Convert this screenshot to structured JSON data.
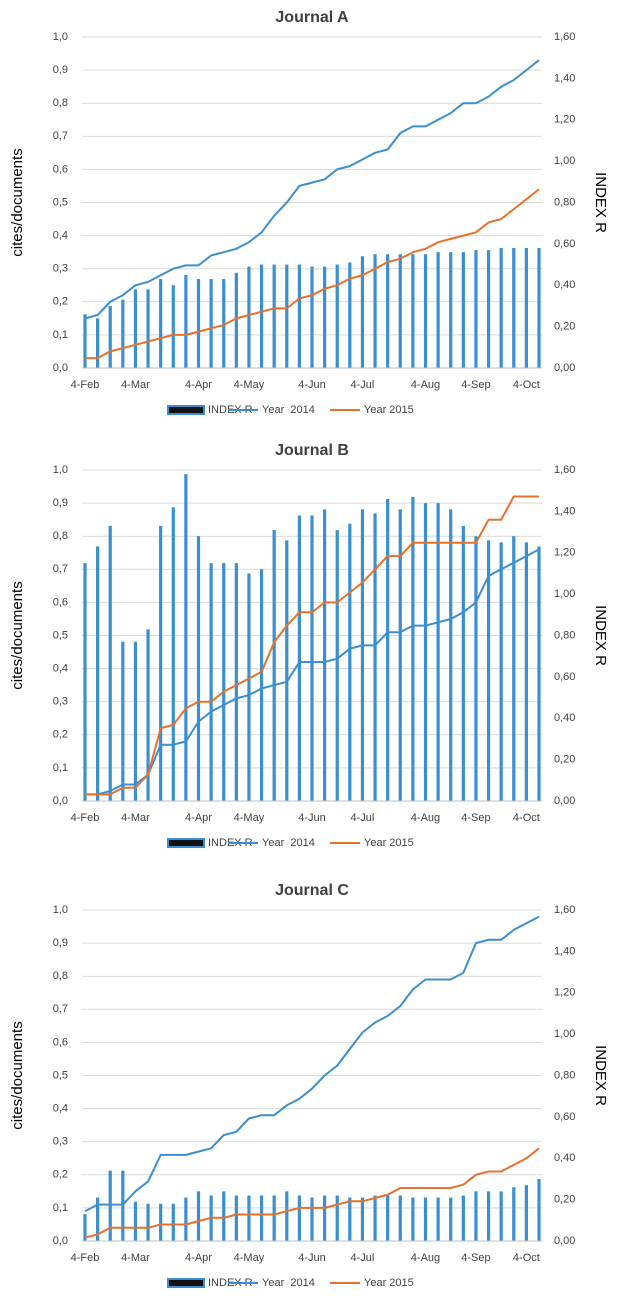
{
  "chart_data": [
    {
      "type": "bar",
      "title": "Journal A",
      "y_label": "cites/documents",
      "y2_label": "INDEX R",
      "categories": [
        "4-Feb",
        null,
        null,
        null,
        "4-Mar",
        null,
        null,
        null,
        null,
        "4-Apr",
        null,
        null,
        null,
        "4-May",
        null,
        null,
        null,
        null,
        "4-Jun",
        null,
        null,
        null,
        "4-Jul",
        null,
        null,
        null,
        null,
        "4-Aug",
        null,
        null,
        null,
        "4-Sep",
        null,
        null,
        null,
        "4-Oct",
        null
      ],
      "ylim": [
        0,
        1
      ],
      "yticks": [
        {
          "value": 0,
          "label": "0,0"
        },
        {
          "value": 0.1,
          "label": "0,1"
        },
        {
          "value": 0.2,
          "label": "0,2"
        },
        {
          "value": 0.3,
          "label": "0,3"
        },
        {
          "value": 0.4,
          "label": "0,4"
        },
        {
          "value": 0.5,
          "label": "0,5"
        },
        {
          "value": 0.6,
          "label": "0,6"
        },
        {
          "value": 0.7,
          "label": "0,7"
        },
        {
          "value": 0.8,
          "label": "0,8"
        },
        {
          "value": 0.9,
          "label": "0,9"
        },
        {
          "value": 1,
          "label": "1,0"
        }
      ],
      "y2lim": [
        0,
        1.6
      ],
      "y2ticks": [
        {
          "value": 0,
          "label": "0,00"
        },
        {
          "value": 0.2,
          "label": "0,20"
        },
        {
          "value": 0.4,
          "label": "0,40"
        },
        {
          "value": 0.6,
          "label": "0,60"
        },
        {
          "value": 0.8,
          "label": "0,80"
        },
        {
          "value": 1,
          "label": "1,00"
        },
        {
          "value": 1.2,
          "label": "1,20"
        },
        {
          "value": 1.4,
          "label": "1,40"
        },
        {
          "value": 1.6,
          "label": "1,60"
        }
      ],
      "grid": true,
      "series": [
        {
          "name": "INDEX R",
          "type": "bar",
          "axis": "y2",
          "color": "#3a8fd0",
          "values": [
            0.26,
            0.24,
            0.3,
            0.33,
            0.38,
            0.38,
            0.43,
            0.4,
            0.45,
            0.43,
            0.43,
            0.43,
            0.46,
            0.49,
            0.5,
            0.5,
            0.5,
            0.5,
            0.49,
            0.49,
            0.5,
            0.51,
            0.54,
            0.55,
            0.55,
            0.55,
            0.55,
            0.55,
            0.56,
            0.56,
            0.56,
            0.57,
            0.57,
            0.58,
            0.58,
            0.58,
            0.58
          ]
        },
        {
          "name": "Year  2014",
          "type": "line",
          "color": "#3a8fd0",
          "values": [
            0.15,
            0.16,
            0.2,
            0.22,
            0.25,
            0.26,
            0.28,
            0.3,
            0.31,
            0.31,
            0.34,
            0.35,
            0.36,
            0.38,
            0.41,
            0.46,
            0.5,
            0.55,
            0.56,
            0.57,
            0.6,
            0.61,
            0.63,
            0.65,
            0.66,
            0.71,
            0.73,
            0.73,
            0.75,
            0.77,
            0.8,
            0.8,
            0.82,
            0.85,
            0.87,
            0.9,
            0.93
          ]
        },
        {
          "name": "Year 2015",
          "type": "line",
          "color": "#e8702a",
          "values": [
            0.03,
            0.03,
            0.05,
            0.06,
            0.07,
            0.08,
            0.09,
            0.1,
            0.1,
            0.11,
            0.12,
            0.13,
            0.15,
            0.16,
            0.17,
            0.18,
            0.18,
            0.21,
            0.22,
            0.24,
            0.25,
            0.27,
            0.28,
            0.3,
            0.32,
            0.33,
            0.35,
            0.36,
            0.38,
            0.39,
            0.4,
            0.41,
            0.44,
            0.45,
            0.48,
            0.51,
            0.54
          ]
        }
      ]
    },
    {
      "type": "bar",
      "title": "Journal B",
      "y_label": "cites/documents",
      "y2_label": "INDEX R",
      "categories": [
        "4-Feb",
        null,
        null,
        null,
        "4-Mar",
        null,
        null,
        null,
        null,
        "4-Apr",
        null,
        null,
        null,
        "4-May",
        null,
        null,
        null,
        null,
        "4-Jun",
        null,
        null,
        null,
        "4-Jul",
        null,
        null,
        null,
        null,
        "4-Aug",
        null,
        null,
        null,
        "4-Sep",
        null,
        null,
        null,
        "4-Oct",
        null
      ],
      "ylim": [
        0,
        1
      ],
      "yticks": [
        {
          "value": 0,
          "label": "0,0"
        },
        {
          "value": 0.1,
          "label": "0,1"
        },
        {
          "value": 0.2,
          "label": "0,2"
        },
        {
          "value": 0.3,
          "label": "0,3"
        },
        {
          "value": 0.4,
          "label": "0,4"
        },
        {
          "value": 0.5,
          "label": "0,5"
        },
        {
          "value": 0.6,
          "label": "0,6"
        },
        {
          "value": 0.7,
          "label": "0,7"
        },
        {
          "value": 0.8,
          "label": "0,8"
        },
        {
          "value": 0.9,
          "label": "0,9"
        },
        {
          "value": 1,
          "label": "1,0"
        }
      ],
      "y2lim": [
        0,
        1.6
      ],
      "y2ticks": [
        {
          "value": 0,
          "label": "0,00"
        },
        {
          "value": 0.2,
          "label": "0,20"
        },
        {
          "value": 0.4,
          "label": "0,40"
        },
        {
          "value": 0.6,
          "label": "0,60"
        },
        {
          "value": 0.8,
          "label": "0,80"
        },
        {
          "value": 1,
          "label": "1,00"
        },
        {
          "value": 1.2,
          "label": "1,20"
        },
        {
          "value": 1.4,
          "label": "1,40"
        },
        {
          "value": 1.6,
          "label": "1,60"
        }
      ],
      "grid": true,
      "series": [
        {
          "name": "INDEX R",
          "type": "bar",
          "axis": "y2",
          "color": "#3a8fd0",
          "values": [
            1.15,
            1.23,
            1.33,
            0.77,
            0.77,
            0.83,
            1.33,
            1.42,
            1.58,
            1.28,
            1.15,
            1.15,
            1.15,
            1.1,
            1.12,
            1.31,
            1.26,
            1.38,
            1.38,
            1.41,
            1.31,
            1.34,
            1.41,
            1.39,
            1.46,
            1.41,
            1.47,
            1.44,
            1.44,
            1.41,
            1.33,
            1.28,
            1.26,
            1.25,
            1.28,
            1.25,
            1.23
          ]
        },
        {
          "name": "Year  2014",
          "type": "line",
          "color": "#3a8fd0",
          "values": [
            0.02,
            0.02,
            0.03,
            0.05,
            0.05,
            0.08,
            0.17,
            0.17,
            0.18,
            0.24,
            0.27,
            0.29,
            0.31,
            0.32,
            0.34,
            0.35,
            0.36,
            0.42,
            0.42,
            0.42,
            0.43,
            0.46,
            0.47,
            0.47,
            0.51,
            0.51,
            0.53,
            0.53,
            0.54,
            0.55,
            0.57,
            0.6,
            0.68,
            0.7,
            0.72,
            0.74,
            0.76
          ]
        },
        {
          "name": "Year 2015",
          "type": "line",
          "color": "#e8702a",
          "values": [
            0.02,
            0.02,
            0.02,
            0.04,
            0.04,
            0.08,
            0.22,
            0.23,
            0.28,
            0.3,
            0.3,
            0.33,
            0.35,
            0.37,
            0.39,
            0.48,
            0.53,
            0.57,
            0.57,
            0.6,
            0.6,
            0.63,
            0.66,
            0.7,
            0.74,
            0.74,
            0.78,
            0.78,
            0.78,
            0.78,
            0.78,
            0.78,
            0.85,
            0.85,
            0.92,
            0.92,
            0.92
          ]
        }
      ]
    },
    {
      "type": "bar",
      "title": "Journal C",
      "y_label": "cites/documents",
      "y2_label": "INDEX R",
      "categories": [
        "4-Feb",
        null,
        null,
        null,
        "4-Mar",
        null,
        null,
        null,
        null,
        "4-Apr",
        null,
        null,
        null,
        "4-May",
        null,
        null,
        null,
        null,
        "4-Jun",
        null,
        null,
        null,
        "4-Jul",
        null,
        null,
        null,
        null,
        "4-Aug",
        null,
        null,
        null,
        "4-Sep",
        null,
        null,
        null,
        "4-Oct",
        null
      ],
      "ylim": [
        0,
        1
      ],
      "yticks": [
        {
          "value": 0,
          "label": "0,0"
        },
        {
          "value": 0.1,
          "label": "0,1"
        },
        {
          "value": 0.2,
          "label": "0,2"
        },
        {
          "value": 0.3,
          "label": "0,3"
        },
        {
          "value": 0.4,
          "label": "0,4"
        },
        {
          "value": 0.5,
          "label": "0,5"
        },
        {
          "value": 0.6,
          "label": "0,6"
        },
        {
          "value": 0.7,
          "label": "0,7"
        },
        {
          "value": 0.8,
          "label": "0,8"
        },
        {
          "value": 0.9,
          "label": "0,9"
        },
        {
          "value": 1,
          "label": "1,0"
        }
      ],
      "y2lim": [
        0,
        1.6
      ],
      "y2ticks": [
        {
          "value": 0,
          "label": "0,00"
        },
        {
          "value": 0.2,
          "label": "0,20"
        },
        {
          "value": 0.4,
          "label": "0,40"
        },
        {
          "value": 0.6,
          "label": "0,60"
        },
        {
          "value": 0.8,
          "label": "0,80"
        },
        {
          "value": 1,
          "label": "1,00"
        },
        {
          "value": 1.2,
          "label": "1,20"
        },
        {
          "value": 1.4,
          "label": "1,40"
        },
        {
          "value": 1.6,
          "label": "1,60"
        }
      ],
      "grid": true,
      "series": [
        {
          "name": "INDEX R",
          "type": "bar",
          "axis": "y2",
          "color": "#3a8fd0",
          "values": [
            0.13,
            0.21,
            0.34,
            0.34,
            0.19,
            0.18,
            0.18,
            0.18,
            0.21,
            0.24,
            0.22,
            0.24,
            0.22,
            0.22,
            0.22,
            0.22,
            0.24,
            0.22,
            0.21,
            0.22,
            0.22,
            0.21,
            0.21,
            0.22,
            0.22,
            0.22,
            0.21,
            0.21,
            0.21,
            0.21,
            0.22,
            0.24,
            0.24,
            0.24,
            0.26,
            0.27,
            0.3
          ]
        },
        {
          "name": "Year  2014",
          "type": "line",
          "color": "#3a8fd0",
          "values": [
            0.09,
            0.11,
            0.11,
            0.11,
            0.15,
            0.18,
            0.26,
            0.26,
            0.26,
            0.27,
            0.28,
            0.32,
            0.33,
            0.37,
            0.38,
            0.38,
            0.41,
            0.43,
            0.46,
            0.5,
            0.53,
            0.58,
            0.63,
            0.66,
            0.68,
            0.71,
            0.76,
            0.79,
            0.79,
            0.79,
            0.81,
            0.9,
            0.91,
            0.91,
            0.94,
            0.96,
            0.98
          ]
        },
        {
          "name": "Year 2015",
          "type": "line",
          "color": "#e8702a",
          "values": [
            0.01,
            0.02,
            0.04,
            0.04,
            0.04,
            0.04,
            0.05,
            0.05,
            0.05,
            0.06,
            0.07,
            0.07,
            0.08,
            0.08,
            0.08,
            0.08,
            0.09,
            0.1,
            0.1,
            0.1,
            0.11,
            0.12,
            0.12,
            0.13,
            0.14,
            0.16,
            0.16,
            0.16,
            0.16,
            0.16,
            0.17,
            0.2,
            0.21,
            0.21,
            0.23,
            0.25,
            0.28
          ]
        }
      ]
    }
  ]
}
